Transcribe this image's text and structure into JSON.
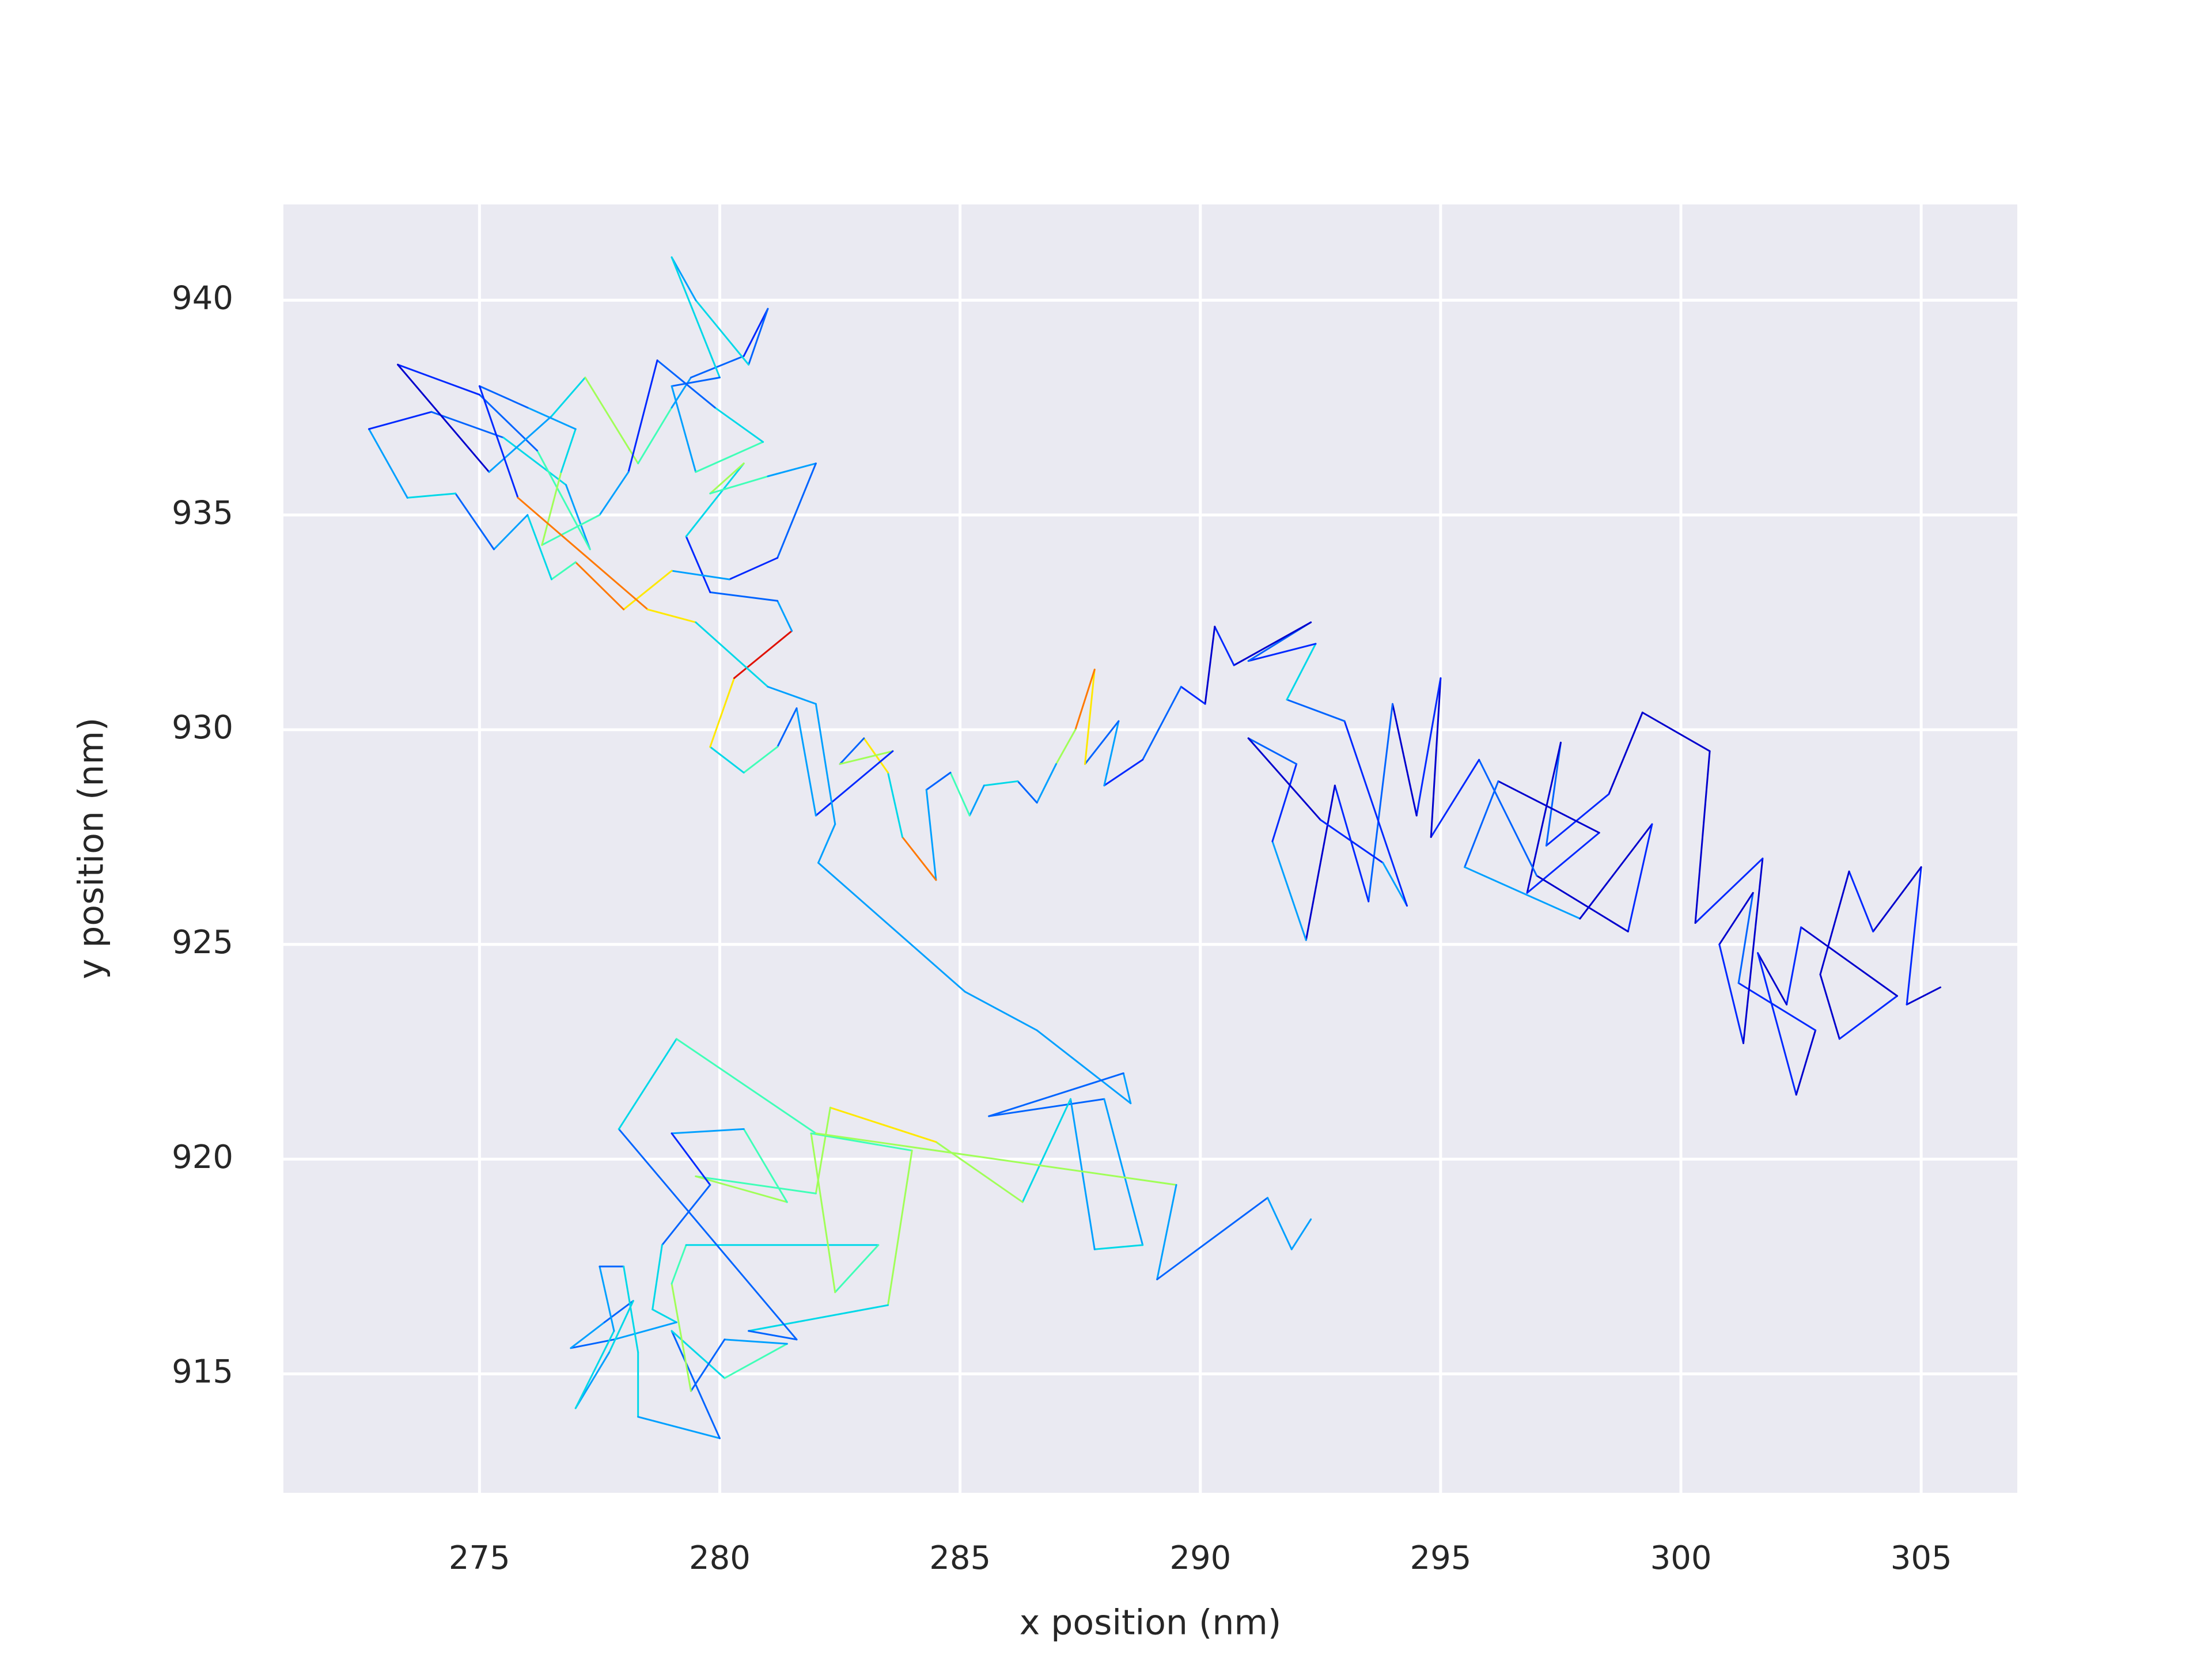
{
  "chart_data": {
    "type": "trajectory",
    "xlabel": "x position (nm)",
    "ylabel": "y position (nm)",
    "xlim": [
      270.92,
      307.0
    ],
    "ylim": [
      912.23,
      942.23
    ],
    "xticks": [
      275,
      280,
      285,
      290,
      295,
      300,
      305
    ],
    "yticks": [
      915,
      920,
      925,
      930,
      935,
      940
    ],
    "grid": true,
    "background": "#eaeaf2",
    "x": [
      305.4,
      304.7,
      305.0,
      304.0,
      303.5,
      302.9,
      303.3,
      304.5,
      302.5,
      302.2,
      301.6,
      302.4,
      302.8,
      301.2,
      301.5,
      300.8,
      301.3,
      301.7,
      300.3,
      300.6,
      299.2,
      298.5,
      297.2,
      297.5,
      296.8,
      298.3,
      296.2,
      295.5,
      297.9,
      299.4,
      298.9,
      297.0,
      295.8,
      294.8,
      295.0,
      294.5,
      294.0,
      293.5,
      292.8,
      292.2,
      291.5,
      292.0,
      291.0,
      292.5,
      293.8,
      294.3,
      293.0,
      291.8,
      292.4,
      291.0,
      292.3,
      290.7,
      290.3,
      290.1,
      289.6,
      288.8,
      288.0,
      288.3,
      287.6,
      287.8,
      287.4,
      287.0,
      286.6,
      286.2,
      285.5,
      285.2,
      284.8,
      284.3,
      284.5,
      283.8,
      283.5,
      283.0,
      282.5,
      283.6,
      282.0,
      281.6,
      281.2,
      280.5,
      279.8,
      280.3,
      281.5,
      281.2,
      279.8,
      279.3,
      280.5,
      279.8,
      281.0,
      282.0,
      281.2,
      280.2,
      279.0,
      278.0,
      277.0,
      276.5,
      276.0,
      275.3,
      274.5,
      273.5,
      272.7,
      274.0,
      275.5,
      276.8,
      277.3,
      276.2,
      275.0,
      273.3,
      275.2,
      276.5,
      277.2,
      278.3,
      279.0,
      279.4,
      280.5,
      281.0,
      280.6,
      279.5,
      279.0,
      280.0,
      279.0,
      279.5,
      280.9,
      279.9,
      278.7,
      278.1,
      277.5,
      276.3,
      276.7,
      277.0,
      276.0,
      275.0,
      275.8,
      278.5,
      279.5,
      281.0,
      282.0,
      282.4,
      282.05,
      285.1,
      286.6,
      288.55,
      288.4,
      285.6,
      288.0,
      288.8,
      287.8,
      287.3,
      286.3,
      284.5,
      282.3,
      282.0,
      279.5,
      281.4,
      280.5,
      279.0,
      279.8,
      278.8,
      278.6,
      279.1,
      277.8,
      276.9,
      277.6,
      278.2,
      277.7,
      277.0,
      277.8,
      277.5,
      278.0,
      278.3,
      278.3,
      280.0,
      279.0,
      280.1,
      281.4,
      280.1,
      279.4,
      279.0,
      279.3,
      283.3,
      282.4,
      281.9,
      284.0,
      283.5,
      280.6,
      281.6,
      277.9,
      279.1,
      282.0,
      289.5,
      289.1,
      291.4,
      291.9,
      292.3
    ],
    "y": [
      924.0,
      923.6,
      926.8,
      925.3,
      926.7,
      924.3,
      922.8,
      923.8,
      925.4,
      923.6,
      924.8,
      921.5,
      923.0,
      924.1,
      926.2,
      925.0,
      922.7,
      927.0,
      925.5,
      929.5,
      930.4,
      928.5,
      927.3,
      929.7,
      926.2,
      927.6,
      928.8,
      926.8,
      925.6,
      927.8,
      925.3,
      926.6,
      929.3,
      927.5,
      931.2,
      928.0,
      930.6,
      926.0,
      928.7,
      925.1,
      927.4,
      929.2,
      929.8,
      927.9,
      926.9,
      925.9,
      930.2,
      930.7,
      932.0,
      931.6,
      932.5,
      931.5,
      932.4,
      930.6,
      931.0,
      929.3,
      928.7,
      930.2,
      929.2,
      931.4,
      930.0,
      929.2,
      928.3,
      928.8,
      928.7,
      928.0,
      929.0,
      928.6,
      926.5,
      927.5,
      929.0,
      929.8,
      929.2,
      929.5,
      928.0,
      930.5,
      929.6,
      929.0,
      929.6,
      931.2,
      932.3,
      933.0,
      933.2,
      934.5,
      936.2,
      935.5,
      935.9,
      936.2,
      934.0,
      933.5,
      933.7,
      932.8,
      933.9,
      933.5,
      935.0,
      934.2,
      935.5,
      935.4,
      937.0,
      937.4,
      936.8,
      935.7,
      934.2,
      936.5,
      937.8,
      938.5,
      936.0,
      937.3,
      938.2,
      936.2,
      937.5,
      938.2,
      938.7,
      939.8,
      938.5,
      940.0,
      941.0,
      938.2,
      938.0,
      936.0,
      936.7,
      937.5,
      938.6,
      936.0,
      935.0,
      934.3,
      936.0,
      937.0,
      937.5,
      938.0,
      935.4,
      932.8,
      932.5,
      931.0,
      930.6,
      927.8,
      926.9,
      923.9,
      923.0,
      921.3,
      922.0,
      921.0,
      921.4,
      918.0,
      917.9,
      921.4,
      919.0,
      920.4,
      921.2,
      919.2,
      919.6,
      919.0,
      920.7,
      920.6,
      919.4,
      918.0,
      916.5,
      916.2,
      915.8,
      915.6,
      916.2,
      916.7,
      915.5,
      914.2,
      916.0,
      917.5,
      917.5,
      915.5,
      914.0,
      913.5,
      916.0,
      914.9,
      915.7,
      915.8,
      914.6,
      917.1,
      918.0,
      918.0,
      916.9,
      920.6,
      920.2,
      916.6,
      916.0,
      915.8,
      920.7,
      922.8,
      920.6,
      919.4,
      917.2,
      919.1,
      917.9,
      918.6
    ],
    "segment_colors": [
      "#0000cd",
      "#0028ff",
      "#0000cd",
      "#0028ff",
      "#0000cd",
      "#0000cd",
      "#0028ff",
      "#0000cd",
      "#0028ff",
      "#0000cd",
      "#0028ff",
      "#0000cd",
      "#0028ff",
      "#0064ff",
      "#0000cd",
      "#0028ff",
      "#0000cd",
      "#0028ff",
      "#0000cd",
      "#0000cd",
      "#0000cd",
      "#0028ff",
      "#0064ff",
      "#0000cd",
      "#0028ff",
      "#0000cd",
      "#0064ff",
      "#00a0ff",
      "#0000cd",
      "#0028ff",
      "#0000cd",
      "#0064ff",
      "#0028ff",
      "#0000cd",
      "#0028ff",
      "#0000cd",
      "#0064ff",
      "#0028ff",
      "#0000cd",
      "#00a0ff",
      "#0028ff",
      "#0064ff",
      "#0000cd",
      "#0028ff",
      "#00a0ff",
      "#0028ff",
      "#0064ff",
      "#00d8e8",
      "#0028ff",
      "#0064ff",
      "#0000cd",
      "#0028ff",
      "#0000cd",
      "#0028ff",
      "#0064ff",
      "#0028ff",
      "#00a0ff",
      "#0064ff",
      "#ffe800",
      "#ff7800",
      "#a0ff58",
      "#00a0ff",
      "#0064ff",
      "#00d8e8",
      "#00a0ff",
      "#40ffb8",
      "#0064ff",
      "#00a0ff",
      "#ff7800",
      "#00d8e8",
      "#ffe800",
      "#0064ff",
      "#a0ff58",
      "#0028ff",
      "#00a0ff",
      "#0064ff",
      "#40ffb8",
      "#00d8e8",
      "#ffe800",
      "#e01000",
      "#00a0ff",
      "#0064ff",
      "#0028ff",
      "#00d8e8",
      "#a0ff58",
      "#40ffb8",
      "#00a0ff",
      "#0064ff",
      "#0028ff",
      "#00a0ff",
      "#ffe800",
      "#ff7800",
      "#40ffb8",
      "#00d8e8",
      "#00a0ff",
      "#0064ff",
      "#00d8e8",
      "#00a0ff",
      "#0028ff",
      "#0064ff",
      "#00d8e8",
      "#00a0ff",
      "#40ffb8",
      "#0064ff",
      "#0028ff",
      "#0000cd",
      "#00a0ff",
      "#00d8e8",
      "#a0ff58",
      "#40ffb8",
      "#00a0ff",
      "#0064ff",
      "#0028ff",
      "#0064ff",
      "#00d8e8",
      "#00a0ff",
      "#00d8e8",
      "#0064ff",
      "#00a0ff",
      "#40ffb8",
      "#00d8e8",
      "#0064ff",
      "#0028ff",
      "#00a0ff",
      "#40ffb8",
      "#a0ff58",
      "#00d8e8",
      "#00a0ff",
      "#0064ff",
      "#0028ff",
      "#ff7800",
      "#ffe800",
      "#00d8e8",
      "#00a0ff",
      "#00a0ff",
      "#00a0ff",
      "#00a0ff",
      "#00a0ff",
      "#00a0ff",
      "#00a0ff",
      "#0064ff",
      "#0064ff",
      "#00a0ff",
      "#00d8e8",
      "#00a0ff",
      "#00d8e8",
      "#a0ff58",
      "#ffe800",
      "#a0ff58",
      "#40ffb8",
      "#a0ff58",
      "#40ffb8",
      "#00a0ff",
      "#0028ff",
      "#0064ff",
      "#00d8e8",
      "#00d8e8",
      "#00a0ff",
      "#0064ff",
      "#00a0ff",
      "#0064ff",
      "#00d8e8",
      "#00a0ff",
      "#00d8e8",
      "#00a0ff",
      "#0064ff",
      "#00d8e8",
      "#00d8e8",
      "#00a0ff",
      "#0064ff",
      "#00d8e8",
      "#40ffb8",
      "#00a0ff",
      "#0064ff",
      "#a0ff58",
      "#40ffb8",
      "#00d8e8",
      "#40ffb8",
      "#a0ff58",
      "#40ffb8",
      "#a0ff58",
      "#00d8e8",
      "#0064ff",
      "#0064ff",
      "#00d8e8",
      "#40ffb8",
      "#a0ff58",
      "#00a0ff",
      "#0064ff",
      "#00a0ff",
      "#00a0ff"
    ]
  }
}
